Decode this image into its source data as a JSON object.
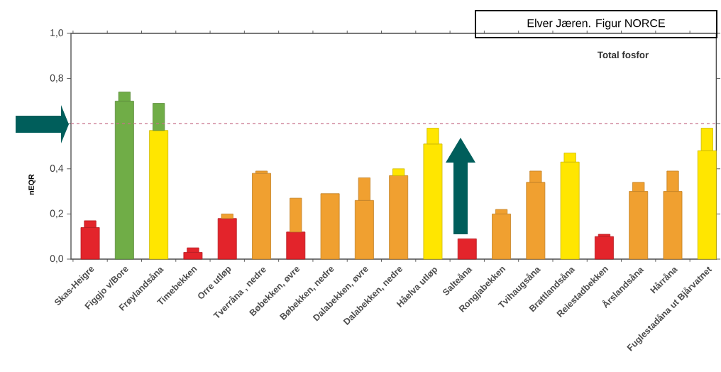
{
  "chart_data": {
    "type": "bar",
    "title": "Total fosfor",
    "ylabel": "nEQR",
    "annotations": [
      "Elver Jæren. Figur NORCE"
    ],
    "categories": [
      "Skas-Heigre",
      "Figgjo v/Bore",
      "Frøylandsåna",
      "Timebekken",
      "Orre utløp",
      "Tverråna , nedre",
      "Bøbekken, øvre",
      "Bøbekken, nedre",
      "Dalabekken, øvre",
      "Dalabekken, nedre",
      "Håelva utløp",
      "Salteåna",
      "Rongjabekken",
      "Tvihaugsåna",
      "Brattlandsåna",
      "Reiestadbekken",
      "Årslandsåna",
      "Hårråna",
      "Fuglestadåna ut Bjårvatnet"
    ],
    "stacked": true,
    "series": [
      {
        "values": [
          0.14,
          0.7,
          0.57,
          0.03,
          0.18,
          0.38,
          0.12,
          0.29,
          0.26,
          0.37,
          0.51,
          0.09,
          0.2,
          0.34,
          0.43,
          0.1,
          0.3,
          0.3,
          0.48
        ],
        "colors": [
          "#e3242b",
          "#70ad47",
          "#ffe600",
          "#e3242b",
          "#e3242b",
          "#f0a030",
          "#e3242b",
          "#f0a030",
          "#f0a030",
          "#f0a030",
          "#ffe600",
          "#e3242b",
          "#f0a030",
          "#f0a030",
          "#ffe600",
          "#e3242b",
          "#f0a030",
          "#f0a030",
          "#ffe600"
        ]
      },
      {
        "values": [
          0.03,
          0.04,
          0.12,
          0.02,
          0.02,
          0.01,
          0.15,
          0,
          0.1,
          0.03,
          0.07,
          0,
          0.02,
          0.05,
          0.04,
          0.01,
          0.04,
          0.09,
          0.1
        ],
        "colors": [
          "#e3242b",
          "#70ad47",
          "#70ad47",
          "#e3242b",
          "#f0a030",
          "#f0a030",
          "#f0a030",
          "#f0a030",
          "#f0a030",
          "#ffe600",
          "#ffe600",
          "#e3242b",
          "#f0a030",
          "#f0a030",
          "#ffe600",
          "#e3242b",
          "#f0a030",
          "#f0a030",
          "#ffe600"
        ]
      }
    ],
    "ylim": [
      0,
      1
    ],
    "yticks": [
      {
        "value": 0,
        "label": "0,0"
      },
      {
        "value": 0.2,
        "label": "0,2"
      },
      {
        "value": 0.4,
        "label": "0,4"
      },
      {
        "value": 0.6,
        "label": null
      },
      {
        "value": 0.8,
        "label": "0,8"
      },
      {
        "value": 1.0,
        "label": "1,0"
      }
    ],
    "ref_lines": [
      {
        "axis": "y",
        "value": 0.6,
        "color": "#c8708a",
        "line_style": "dashed"
      }
    ]
  }
}
